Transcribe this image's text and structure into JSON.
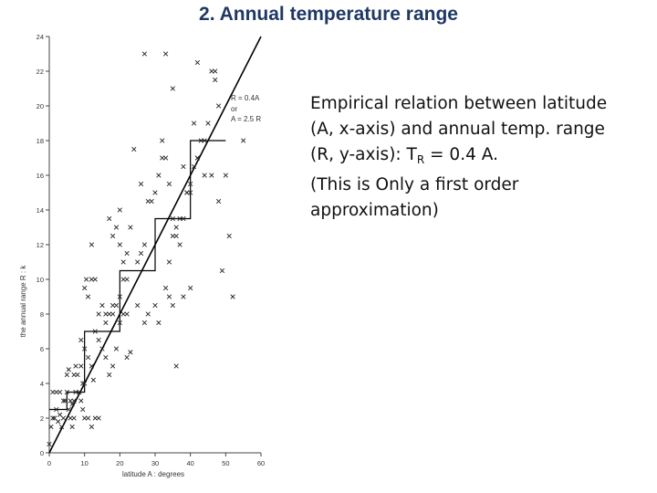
{
  "slide": {
    "title": "2. Annual temperature range",
    "caption_line1": "Empirical relation between latitude",
    "caption_line2": "(A, x-axis) and annual temp. range",
    "caption_line3_pre": "(R, y-axis): T",
    "caption_line3_sub": "R",
    "caption_line3_post": " = 0.4 A.",
    "caption_line4": "(This is Only a first order",
    "caption_line5": "approximation)"
  },
  "chart_data": {
    "type": "scatter",
    "xlabel": "latitude A : degrees",
    "ylabel": "the annual range R : k",
    "xlim": [
      0,
      60
    ],
    "ylim": [
      0,
      24
    ],
    "xticks": [
      "0",
      "10",
      "20",
      "30",
      "40",
      "50",
      "60"
    ],
    "yticks": [
      "0",
      "2",
      "4",
      "6",
      "8",
      "10",
      "12",
      "14",
      "16",
      "18",
      "20",
      "22",
      "24"
    ],
    "annotation_line1": "R = 0.4A",
    "annotation_line2": "or",
    "annotation_line3": "A = 2.5 R",
    "fit_line": [
      [
        0,
        0
      ],
      [
        60,
        24
      ]
    ],
    "step_line": [
      [
        0,
        2.5
      ],
      [
        5,
        2.5
      ],
      [
        5,
        3.5
      ],
      [
        10,
        3.5
      ],
      [
        10,
        7
      ],
      [
        20,
        7
      ],
      [
        20,
        10.5
      ],
      [
        30,
        10.5
      ],
      [
        30,
        13.5
      ],
      [
        40,
        13.5
      ],
      [
        40,
        18
      ],
      [
        50,
        18
      ]
    ],
    "points": [
      [
        0,
        0.5
      ],
      [
        0.5,
        1.5
      ],
      [
        1,
        2
      ],
      [
        1.5,
        2
      ],
      [
        2,
        2.5
      ],
      [
        2.5,
        1.8
      ],
      [
        3,
        2.2
      ],
      [
        3.5,
        1.5
      ],
      [
        4,
        2
      ],
      [
        4,
        3
      ],
      [
        1,
        3.5
      ],
      [
        2,
        3.5
      ],
      [
        3,
        3.5
      ],
      [
        4.5,
        3
      ],
      [
        5,
        3.5
      ],
      [
        5.5,
        2.5
      ],
      [
        6,
        2
      ],
      [
        6.5,
        1.5
      ],
      [
        7,
        2
      ],
      [
        6,
        3
      ],
      [
        6.5,
        2.8
      ],
      [
        7,
        3
      ],
      [
        7.5,
        3.5
      ],
      [
        8,
        4.5
      ],
      [
        8.5,
        3.5
      ],
      [
        9,
        3
      ],
      [
        9.5,
        2.5
      ],
      [
        10,
        2
      ],
      [
        11,
        2
      ],
      [
        12,
        1.5
      ],
      [
        13,
        2
      ],
      [
        14,
        2
      ],
      [
        5,
        4.5
      ],
      [
        5.5,
        4.8
      ],
      [
        7,
        4.5
      ],
      [
        7.5,
        5
      ],
      [
        9,
        5
      ],
      [
        9.5,
        4
      ],
      [
        10,
        4
      ],
      [
        9,
        6.5
      ],
      [
        10,
        6
      ],
      [
        11,
        5.5
      ],
      [
        12,
        5
      ],
      [
        12.5,
        4.2
      ],
      [
        13,
        7
      ],
      [
        14,
        6.5
      ],
      [
        15,
        6
      ],
      [
        16,
        5.5
      ],
      [
        17,
        4.5
      ],
      [
        18,
        5
      ],
      [
        19,
        6
      ],
      [
        20,
        7.5
      ],
      [
        21,
        8
      ],
      [
        22,
        8
      ],
      [
        16,
        7.5
      ],
      [
        17,
        8
      ],
      [
        18,
        8
      ],
      [
        19,
        8.5
      ],
      [
        20,
        9
      ],
      [
        21,
        10
      ],
      [
        22,
        11.5
      ],
      [
        23,
        13
      ],
      [
        25,
        11
      ],
      [
        26,
        11.5
      ],
      [
        27,
        12
      ],
      [
        28,
        14.5
      ],
      [
        29,
        14.5
      ],
      [
        30,
        15
      ],
      [
        31,
        16
      ],
      [
        32,
        17
      ],
      [
        33,
        17
      ],
      [
        34,
        15.5
      ],
      [
        35,
        13.5
      ],
      [
        36,
        12.5
      ],
      [
        37,
        12
      ],
      [
        38,
        13.5
      ],
      [
        39,
        15
      ],
      [
        40,
        15
      ],
      [
        41,
        16.5
      ],
      [
        42,
        17
      ],
      [
        43,
        18
      ],
      [
        44,
        16
      ],
      [
        45,
        19
      ],
      [
        46,
        22
      ],
      [
        47,
        21.5
      ],
      [
        48,
        20
      ],
      [
        10,
        9.5
      ],
      [
        10.5,
        10
      ],
      [
        11,
        9
      ],
      [
        12,
        10
      ],
      [
        13,
        10
      ],
      [
        14,
        8
      ],
      [
        15,
        8.5
      ],
      [
        16,
        8
      ],
      [
        18,
        8.5
      ],
      [
        22,
        5.5
      ],
      [
        23,
        5.8
      ],
      [
        25,
        8.5
      ],
      [
        27,
        7.5
      ],
      [
        28,
        8
      ],
      [
        30,
        8.5
      ],
      [
        31,
        7.5
      ],
      [
        33,
        9.5
      ],
      [
        34,
        9
      ],
      [
        35,
        8.5
      ],
      [
        36,
        5
      ],
      [
        38,
        9
      ],
      [
        40,
        9.5
      ],
      [
        34,
        11
      ],
      [
        35,
        12.5
      ],
      [
        36,
        13
      ],
      [
        37,
        13.5
      ],
      [
        38,
        16.5
      ],
      [
        39,
        15
      ],
      [
        40,
        15.5
      ],
      [
        42,
        17
      ],
      [
        44,
        18
      ],
      [
        46,
        16
      ],
      [
        48,
        14.5
      ],
      [
        49,
        10.5
      ],
      [
        51,
        12.5
      ],
      [
        52,
        9
      ],
      [
        50,
        16
      ],
      [
        55,
        18
      ],
      [
        27,
        23
      ],
      [
        33,
        23
      ],
      [
        35,
        21
      ],
      [
        42,
        22.5
      ],
      [
        47,
        22
      ],
      [
        41,
        19
      ],
      [
        19,
        13
      ],
      [
        20,
        12
      ],
      [
        21,
        11
      ],
      [
        22,
        10
      ],
      [
        12,
        12
      ],
      [
        17,
        13.5
      ],
      [
        18,
        12.5
      ],
      [
        20,
        14
      ],
      [
        24,
        17.5
      ],
      [
        26,
        15.5
      ],
      [
        32,
        18
      ]
    ]
  }
}
